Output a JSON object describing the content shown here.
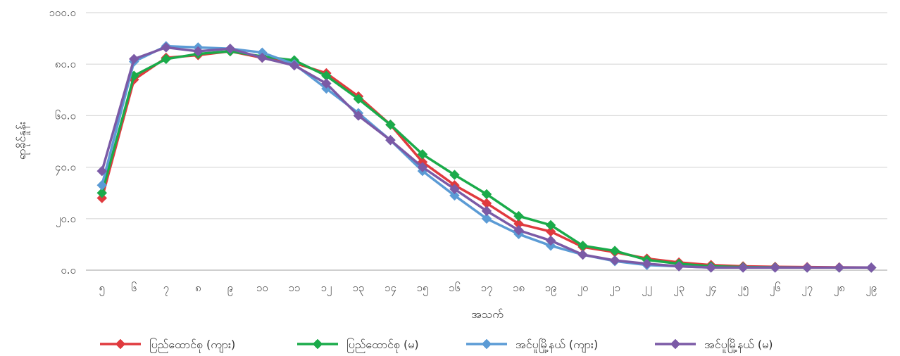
{
  "chart_data": {
    "type": "line",
    "xlabel": "အသက်",
    "ylabel": "ရာခိုင်နှုန်း",
    "ylim": [
      0,
      100
    ],
    "yticks": [
      "၀.၀",
      "၂၀.၀",
      "၄၀.၀",
      "၆၀.၀",
      "၈၀.၀",
      "၁၀၀.၀"
    ],
    "categories": [
      "၅",
      "၆",
      "၇",
      "၈",
      "၉",
      "၁၀",
      "၁၁",
      "၁၂",
      "၁၃",
      "၁၄",
      "၁၅",
      "၁၆",
      "၁၇",
      "၁၈",
      "၁၉",
      "၂၀",
      "၂၁",
      "၂၂",
      "၂၃",
      "၂၄",
      "၂၅",
      "၂၆",
      "၂၇",
      "၂၈",
      "၂၉"
    ],
    "grid": true,
    "legend_position": "bottom",
    "series": [
      {
        "name": "ပြည်ထောင်စု (ကျား)",
        "color": "#e03a3e",
        "values": [
          28.0,
          74.0,
          82.5,
          83.5,
          85.0,
          82.5,
          80.5,
          76.5,
          67.5,
          56.5,
          42.0,
          33.0,
          26.0,
          18.0,
          15.0,
          9.0,
          7.0,
          4.5,
          3.0,
          2.0,
          1.5,
          1.3,
          1.2,
          1.1,
          1.0
        ]
      },
      {
        "name": "ပြည်ထောင်စု (မ)",
        "color": "#1aab4a",
        "values": [
          30.0,
          75.5,
          82.0,
          84.0,
          85.0,
          83.0,
          81.5,
          75.5,
          66.5,
          56.5,
          45.0,
          37.0,
          29.5,
          21.0,
          17.5,
          9.5,
          7.5,
          4.0,
          2.5,
          1.5,
          1.2,
          1.1,
          1.0,
          1.0,
          1.0
        ]
      },
      {
        "name": "အင်ပူမြို့နယ် (ကျား)",
        "color": "#5b9bd5",
        "values": [
          33.0,
          81.0,
          87.0,
          86.5,
          86.0,
          84.5,
          80.0,
          70.5,
          61.0,
          50.5,
          38.5,
          29.0,
          20.0,
          14.0,
          9.5,
          6.0,
          3.5,
          2.0,
          1.5,
          1.0,
          1.0,
          1.0,
          1.0,
          1.0,
          1.0
        ]
      },
      {
        "name": "အင်ပူမြို့နယ် (မ)",
        "color": "#7b5aa6",
        "values": [
          38.5,
          82.0,
          86.5,
          85.0,
          86.0,
          82.5,
          79.5,
          72.5,
          60.0,
          50.5,
          40.0,
          31.5,
          23.0,
          15.5,
          11.5,
          6.0,
          3.8,
          2.5,
          1.5,
          1.0,
          1.0,
          1.0,
          1.0,
          1.0,
          1.0
        ]
      }
    ]
  }
}
